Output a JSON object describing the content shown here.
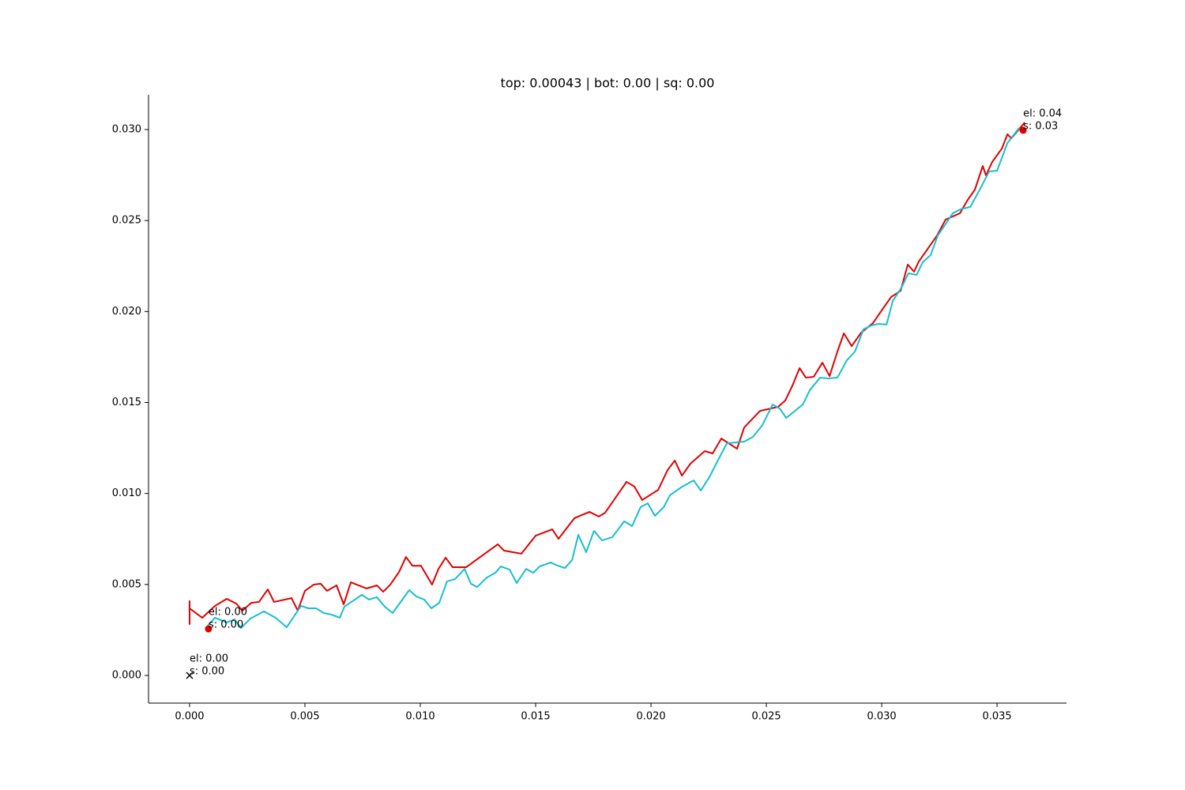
{
  "chart_data": {
    "type": "line",
    "title": "top: 0.00043 | bot: 0.00 | sq: 0.00",
    "xlim": [
      -0.00178,
      0.03801
    ],
    "ylim": [
      -0.00152,
      0.03191
    ],
    "xticks": [
      {
        "value": 0,
        "label": "0.000"
      },
      {
        "value": 0.005,
        "label": "0.005"
      },
      {
        "value": 0.01,
        "label": "0.010"
      },
      {
        "value": 0.015,
        "label": "0.015"
      },
      {
        "value": 0.02,
        "label": "0.020"
      },
      {
        "value": 0.025,
        "label": "0.025"
      },
      {
        "value": 0.03,
        "label": "0.030"
      },
      {
        "value": 0.035,
        "label": "0.035"
      }
    ],
    "yticks": [
      {
        "value": 0,
        "label": "0.000"
      },
      {
        "value": 0.005,
        "label": "0.005"
      },
      {
        "value": 0.01,
        "label": "0.010"
      },
      {
        "value": 0.015,
        "label": "0.015"
      },
      {
        "value": 0.02,
        "label": "0.020"
      },
      {
        "value": 0.025,
        "label": "0.025"
      },
      {
        "value": 0.03,
        "label": "0.030"
      }
    ],
    "series": [
      {
        "color": "#e00000",
        "x": [
          0,
          0,
          0,
          0.00055,
          0.0011,
          0.00161,
          0.00202,
          0.00229,
          0.00267,
          0.00301,
          0.00339,
          0.00366,
          0.00442,
          0.00469,
          0.005,
          0.00538,
          0.00568,
          0.00596,
          0.00637,
          0.00668,
          0.00699,
          0.00767,
          0.00812,
          0.00839,
          0.0087,
          0.00908,
          0.00938,
          0.00966,
          0.01003,
          0.01051,
          0.01079,
          0.0111,
          0.0114,
          0.01199,
          0.01336,
          0.01363,
          0.01438,
          0.015,
          0.01572,
          0.01599,
          0.01668,
          0.01733,
          0.01774,
          0.01801,
          0.01894,
          0.01928,
          0.01962,
          0.02031,
          0.02072,
          0.02103,
          0.02134,
          0.02171,
          0.02233,
          0.02267,
          0.02305,
          0.02373,
          0.02404,
          0.02473,
          0.02551,
          0.02582,
          0.02613,
          0.02644,
          0.02671,
          0.02705,
          0.02743,
          0.02774,
          0.02808,
          0.02836,
          0.0287,
          0.02911,
          0.02962,
          0.03007,
          0.03041,
          0.03082,
          0.03113,
          0.0314,
          0.03161,
          0.0324,
          0.03277,
          0.03339,
          0.03373,
          0.03404,
          0.03438,
          0.03452,
          0.03479,
          0.03521,
          0.03545,
          0.03562,
          0.0362
        ],
        "values": [
          0.00412,
          0.00282,
          0.00369,
          0.00317,
          0.00382,
          0.00421,
          0.00395,
          0.00356,
          0.00399,
          0.00404,
          0.00473,
          0.00404,
          0.00425,
          0.00356,
          0.00465,
          0.00499,
          0.00504,
          0.00465,
          0.00495,
          0.00391,
          0.00512,
          0.00478,
          0.00495,
          0.0046,
          0.00499,
          0.00569,
          0.00651,
          0.00603,
          0.00603,
          0.00499,
          0.00586,
          0.00647,
          0.00595,
          0.00595,
          0.00721,
          0.00686,
          0.00669,
          0.00768,
          0.00803,
          0.00751,
          0.00864,
          0.00899,
          0.00873,
          0.00894,
          0.01064,
          0.01038,
          0.00964,
          0.0102,
          0.01129,
          0.01181,
          0.01098,
          0.01164,
          0.01233,
          0.0122,
          0.01302,
          0.01246,
          0.01363,
          0.01454,
          0.01476,
          0.01511,
          0.01593,
          0.01689,
          0.01637,
          0.01641,
          0.01719,
          0.01645,
          0.0178,
          0.0188,
          0.0181,
          0.01884,
          0.01936,
          0.02019,
          0.0208,
          0.02114,
          0.02258,
          0.02219,
          0.02275,
          0.02418,
          0.02505,
          0.0254,
          0.02614,
          0.0267,
          0.028,
          0.02748,
          0.02822,
          0.02896,
          0.02974,
          0.02952,
          0.03039
        ]
      },
      {
        "color": "#17becf",
        "x": [
          0.00079,
          0.0011,
          0.00161,
          0.00195,
          0.00223,
          0.00264,
          0.00322,
          0.00373,
          0.00421,
          0.00483,
          0.00514,
          0.00548,
          0.00582,
          0.00616,
          0.00651,
          0.00671,
          0.00747,
          0.00777,
          0.00812,
          0.00846,
          0.0088,
          0.00952,
          0.00983,
          0.01017,
          0.01048,
          0.01082,
          0.01116,
          0.01151,
          0.01192,
          0.01219,
          0.01247,
          0.01288,
          0.01325,
          0.01349,
          0.01387,
          0.01418,
          0.01459,
          0.0149,
          0.01517,
          0.01565,
          0.01596,
          0.01627,
          0.01658,
          0.01685,
          0.01719,
          0.01753,
          0.01788,
          0.01832,
          0.01884,
          0.01918,
          0.01955,
          0.01986,
          0.02017,
          0.02055,
          0.02082,
          0.0213,
          0.02185,
          0.02216,
          0.02253,
          0.02288,
          0.02329,
          0.02404,
          0.02442,
          0.02483,
          0.02527,
          0.02558,
          0.02586,
          0.02658,
          0.02688,
          0.02733,
          0.02767,
          0.02808,
          0.02849,
          0.02884,
          0.02921,
          0.02955,
          0.02986,
          0.03021,
          0.03048,
          0.03086,
          0.03116,
          0.03151,
          0.03178,
          0.03212,
          0.03243,
          0.03274,
          0.03308,
          0.03342,
          0.03384,
          0.03425,
          0.03466,
          0.035,
          0.03545,
          0.03596
        ],
        "values": [
          0.00274,
          0.00317,
          0.00291,
          0.00308,
          0.00261,
          0.00313,
          0.00352,
          0.00317,
          0.00265,
          0.00382,
          0.00369,
          0.00369,
          0.00343,
          0.00334,
          0.00317,
          0.00378,
          0.00443,
          0.00417,
          0.0043,
          0.00378,
          0.00343,
          0.00469,
          0.00434,
          0.00417,
          0.00369,
          0.00399,
          0.00517,
          0.0053,
          0.00586,
          0.00504,
          0.00486,
          0.00538,
          0.00564,
          0.00599,
          0.00582,
          0.00508,
          0.00586,
          0.00564,
          0.00599,
          0.00621,
          0.00603,
          0.0059,
          0.00634,
          0.00773,
          0.00677,
          0.00795,
          0.00742,
          0.0076,
          0.00847,
          0.00821,
          0.00925,
          0.00946,
          0.00877,
          0.00925,
          0.0099,
          0.01033,
          0.01072,
          0.01016,
          0.0109,
          0.01177,
          0.01276,
          0.01285,
          0.01311,
          0.01376,
          0.01489,
          0.01467,
          0.01415,
          0.01489,
          0.01567,
          0.01637,
          0.01632,
          0.01637,
          0.01732,
          0.0178,
          0.01902,
          0.01923,
          0.01932,
          0.01928,
          0.02058,
          0.02132,
          0.0221,
          0.02201,
          0.02271,
          0.0231,
          0.02418,
          0.02475,
          0.0254,
          0.02562,
          0.02575,
          0.0267,
          0.0277,
          0.02774,
          0.02926,
          0.03009
        ]
      }
    ],
    "points": [
      {
        "marker": "o",
        "color": "#e00000",
        "x": 0.00082,
        "y": 0.00256,
        "label": [
          "el: 0.00",
          "s: 0.00"
        ]
      },
      {
        "marker": "o",
        "color": "#e00000",
        "x": 0.03613,
        "y": 0.02996,
        "label": [
          "el: 0.04",
          "s: 0.03"
        ]
      },
      {
        "marker": "x",
        "color": "#000000",
        "x": 0,
        "y": 0,
        "label": [
          "el: 0.00",
          "s: 0.00"
        ]
      }
    ]
  }
}
